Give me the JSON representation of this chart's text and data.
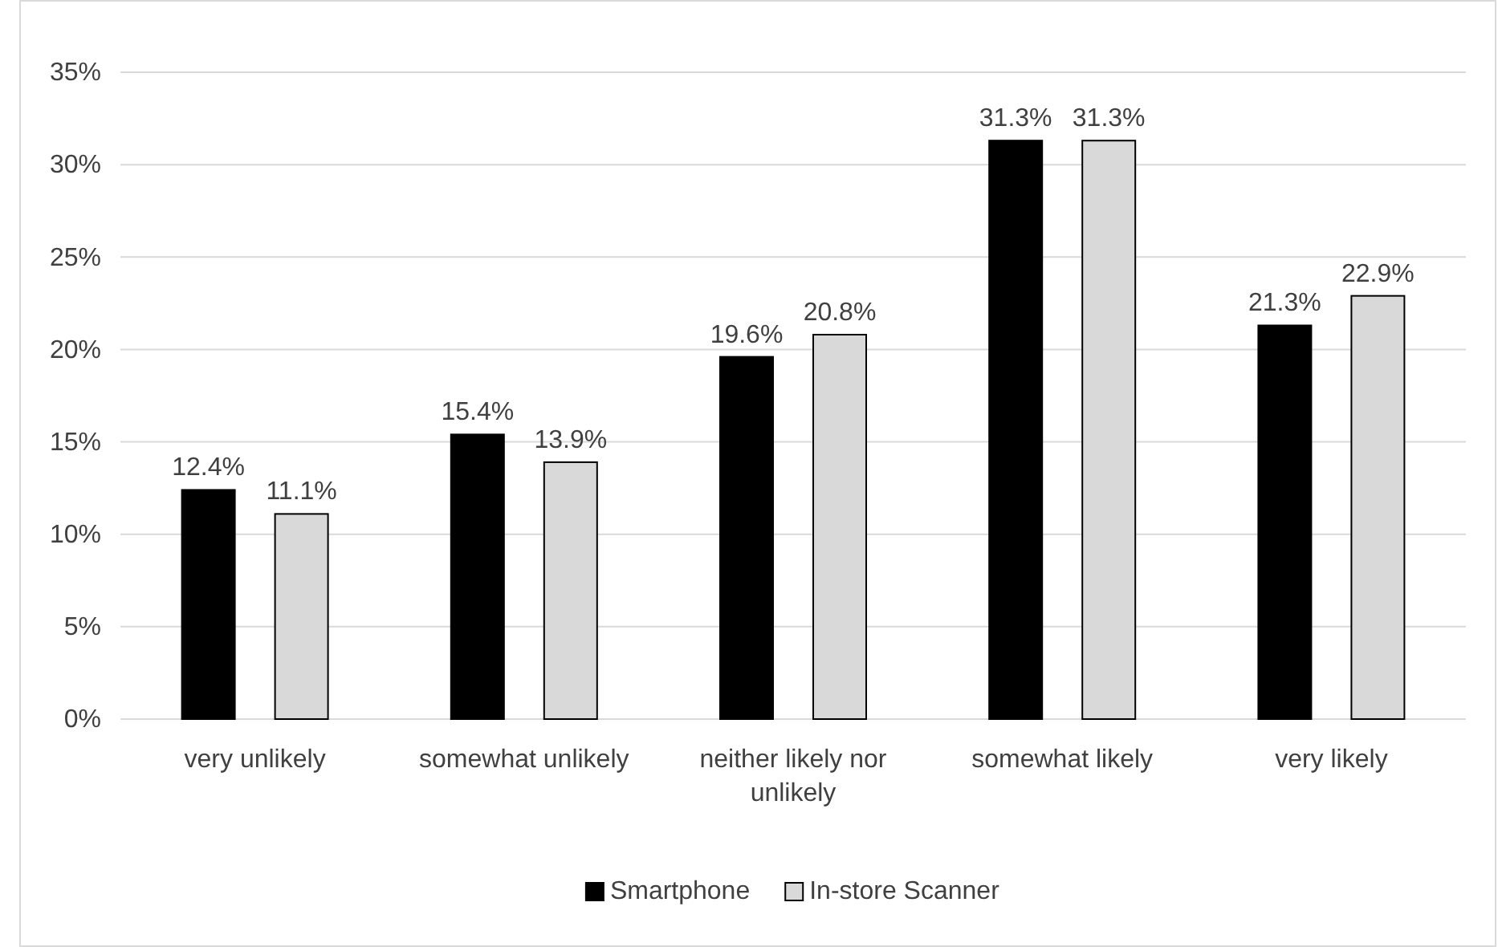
{
  "chart_data": {
    "type": "bar",
    "categories": [
      "very unlikely",
      "somewhat unlikely",
      "neither likely nor unlikely",
      "somewhat likely",
      "very likely"
    ],
    "series": [
      {
        "name": "Smartphone",
        "color": "#000000",
        "values": [
          12.4,
          15.4,
          19.6,
          31.3,
          21.3
        ],
        "value_labels": [
          "12.4%",
          "15.4%",
          "19.6%",
          "31.3%",
          "21.3%"
        ]
      },
      {
        "name": "In-store Scanner",
        "color": "#d9d9d9",
        "values": [
          11.1,
          13.9,
          20.8,
          31.3,
          22.9
        ],
        "value_labels": [
          "11.1%",
          "13.9%",
          "20.8%",
          "31.3%",
          "22.9%"
        ]
      }
    ],
    "ylim": [
      0,
      35
    ],
    "yticks": [
      {
        "value": 0,
        "label": "0%"
      },
      {
        "value": 5,
        "label": "5%"
      },
      {
        "value": 10,
        "label": "10%"
      },
      {
        "value": 15,
        "label": "15%"
      },
      {
        "value": 20,
        "label": "20%"
      },
      {
        "value": 25,
        "label": "25%"
      },
      {
        "value": 30,
        "label": "30%"
      },
      {
        "value": 35,
        "label": "35%"
      }
    ],
    "grid": "y",
    "legend": "bottom"
  }
}
